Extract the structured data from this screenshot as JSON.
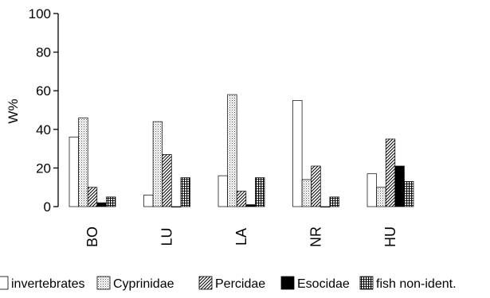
{
  "chart_data": {
    "type": "bar",
    "title": "",
    "xlabel": "",
    "ylabel": "W%",
    "ylim": [
      0,
      100
    ],
    "yticks": [
      0,
      20,
      40,
      60,
      80,
      100
    ],
    "categories": [
      "BO",
      "LU",
      "LA",
      "NR",
      "HU"
    ],
    "series": [
      {
        "name": "invertebrates",
        "fill": "white",
        "values": [
          36,
          6,
          16,
          55,
          17
        ]
      },
      {
        "name": "Cyprinidae",
        "fill": "dotted",
        "values": [
          46,
          44,
          58,
          14,
          10
        ]
      },
      {
        "name": "Percidae",
        "fill": "diagonal",
        "values": [
          10,
          27,
          8,
          21,
          35
        ]
      },
      {
        "name": "Esocidae",
        "fill": "black",
        "values": [
          2,
          0,
          1,
          0,
          21
        ]
      },
      {
        "name": "fish non-ident.",
        "fill": "vertical",
        "values": [
          5,
          15,
          15,
          5,
          13
        ]
      }
    ],
    "grid": false,
    "legend": "bottom"
  }
}
